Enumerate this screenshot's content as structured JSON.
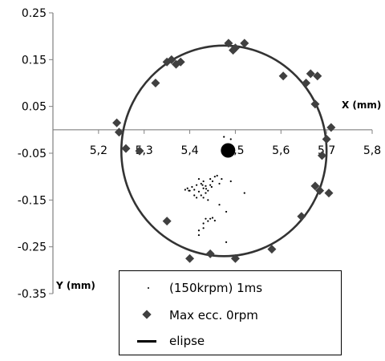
{
  "chart_data": {
    "type": "scatter",
    "xlim": [
      5.1,
      5.8
    ],
    "ylim": [
      -0.35,
      0.25
    ],
    "x_ticks": [
      "5,2",
      "5,3",
      "5,4",
      "5,5",
      "5,6",
      "5,7",
      "5,8"
    ],
    "y_ticks": [
      "0.25",
      "0.15",
      "0.05",
      "-0.05",
      "-0.15",
      "-0.25",
      "-0.35"
    ],
    "xlabel": "X (mm)",
    "ylabel": "Y (mm)",
    "grid": false,
    "legend_position": "bottom-center",
    "series": [
      {
        "name": "(150krpm) 1ms",
        "marker": "dot",
        "color": "#000000",
        "points": [
          [
            5.475,
            -0.015
          ],
          [
            5.49,
            -0.02
          ],
          [
            5.43,
            -0.125
          ],
          [
            5.415,
            -0.118
          ],
          [
            5.42,
            -0.132
          ],
          [
            5.425,
            -0.115
          ],
          [
            5.43,
            -0.11
          ],
          [
            5.435,
            -0.12
          ],
          [
            5.44,
            -0.13
          ],
          [
            5.445,
            -0.118
          ],
          [
            5.41,
            -0.128
          ],
          [
            5.405,
            -0.122
          ],
          [
            5.4,
            -0.13
          ],
          [
            5.395,
            -0.125
          ],
          [
            5.39,
            -0.128
          ],
          [
            5.445,
            -0.105
          ],
          [
            5.45,
            -0.11
          ],
          [
            5.455,
            -0.1
          ],
          [
            5.46,
            -0.098
          ],
          [
            5.465,
            -0.115
          ],
          [
            5.47,
            -0.105
          ],
          [
            5.49,
            -0.11
          ],
          [
            5.42,
            -0.105
          ],
          [
            5.425,
            -0.14
          ],
          [
            5.43,
            -0.145
          ],
          [
            5.435,
            -0.135
          ],
          [
            5.44,
            -0.15
          ],
          [
            5.415,
            -0.145
          ],
          [
            5.41,
            -0.14
          ],
          [
            5.435,
            -0.19
          ],
          [
            5.44,
            -0.195
          ],
          [
            5.445,
            -0.19
          ],
          [
            5.45,
            -0.188
          ],
          [
            5.455,
            -0.194
          ],
          [
            5.43,
            -0.2
          ],
          [
            5.43,
            -0.21
          ],
          [
            5.42,
            -0.215
          ],
          [
            5.42,
            -0.225
          ],
          [
            5.465,
            -0.16
          ],
          [
            5.48,
            -0.175
          ],
          [
            5.52,
            -0.135
          ],
          [
            5.48,
            -0.24
          ],
          [
            5.398,
            -0.13
          ],
          [
            5.428,
            -0.118
          ],
          [
            5.436,
            -0.126
          ],
          [
            5.448,
            -0.122
          ]
        ]
      },
      {
        "name": "Max ecc. 0rpm",
        "marker": "diamond",
        "color": "#404040",
        "points": [
          [
            5.485,
            0.185
          ],
          [
            5.495,
            0.17
          ],
          [
            5.5,
            0.175
          ],
          [
            5.52,
            0.185
          ],
          [
            5.36,
            0.15
          ],
          [
            5.35,
            0.145
          ],
          [
            5.37,
            0.14
          ],
          [
            5.38,
            0.145
          ],
          [
            5.325,
            0.1
          ],
          [
            5.605,
            0.115
          ],
          [
            5.665,
            0.12
          ],
          [
            5.68,
            0.115
          ],
          [
            5.655,
            0.1
          ],
          [
            5.675,
            0.055
          ],
          [
            5.24,
            0.015
          ],
          [
            5.245,
            -0.005
          ],
          [
            5.26,
            -0.04
          ],
          [
            5.29,
            -0.045
          ],
          [
            5.71,
            0.005
          ],
          [
            5.7,
            -0.02
          ],
          [
            5.69,
            -0.055
          ],
          [
            5.675,
            -0.12
          ],
          [
            5.685,
            -0.13
          ],
          [
            5.705,
            -0.135
          ],
          [
            5.645,
            -0.185
          ],
          [
            5.35,
            -0.195
          ],
          [
            5.58,
            -0.255
          ],
          [
            5.4,
            -0.275
          ],
          [
            5.445,
            -0.265
          ],
          [
            5.5,
            -0.275
          ]
        ]
      },
      {
        "name": "elipse",
        "type": "line",
        "color": "#333333",
        "ellipse": {
          "cx": 5.475,
          "cy": -0.045,
          "rx": 0.225,
          "ry": 0.225
        }
      },
      {
        "name": "center",
        "marker": "large-dot",
        "color": "#000000",
        "points": [
          [
            5.484,
            -0.044
          ]
        ]
      }
    ]
  },
  "legend": {
    "items": [
      {
        "label": "(150krpm) 1ms"
      },
      {
        "label": "Max ecc. 0rpm"
      },
      {
        "label": "elipse"
      }
    ]
  }
}
